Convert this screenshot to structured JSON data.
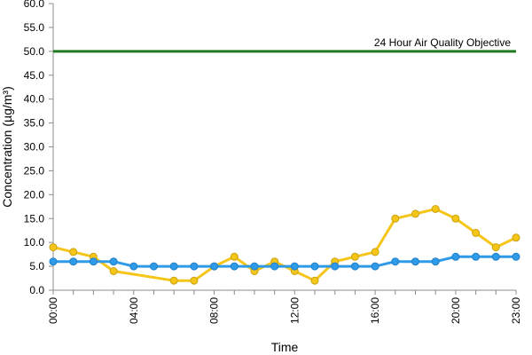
{
  "chart_data": {
    "type": "line",
    "title": "",
    "xlabel": "Time",
    "ylabel": "Concentration (µg/m³)",
    "x": [
      "00:00",
      "01:00",
      "02:00",
      "03:00",
      "04:00",
      "05:00",
      "06:00",
      "07:00",
      "08:00",
      "09:00",
      "10:00",
      "11:00",
      "12:00",
      "13:00",
      "14:00",
      "15:00",
      "16:00",
      "17:00",
      "18:00",
      "19:00",
      "20:00",
      "21:00",
      "22:00",
      "23:00"
    ],
    "x_tick_labels": [
      "00:00",
      "04:00",
      "08:00",
      "12:00",
      "16:00",
      "20:00",
      "23:00"
    ],
    "ylim": [
      0,
      60
    ],
    "y_tick_labels": [
      "0.0",
      "5.0",
      "10.0",
      "15.0",
      "20.0",
      "25.0",
      "30.0",
      "35.0",
      "40.0",
      "45.0",
      "50.0",
      "55.0",
      "60.0"
    ],
    "grid": false,
    "series": [
      {
        "color": "#f5c518",
        "values": [
          9,
          8,
          7,
          4,
          null,
          null,
          2,
          2,
          5,
          7,
          4,
          6,
          4,
          2,
          6,
          7,
          8,
          15,
          16,
          17,
          15,
          12,
          9,
          11
        ]
      },
      {
        "color": "#2f9be8",
        "values": [
          6,
          6,
          6,
          6,
          5,
          5,
          5,
          5,
          5,
          5,
          5,
          5,
          5,
          5,
          5,
          5,
          5,
          6,
          6,
          6,
          7,
          7,
          7,
          7
        ]
      }
    ],
    "reference_line": {
      "value": 50,
      "label": "24 Hour Air Quality Objective",
      "color": "#1f7a1f"
    },
    "axis_color": "#8c8c8c"
  }
}
